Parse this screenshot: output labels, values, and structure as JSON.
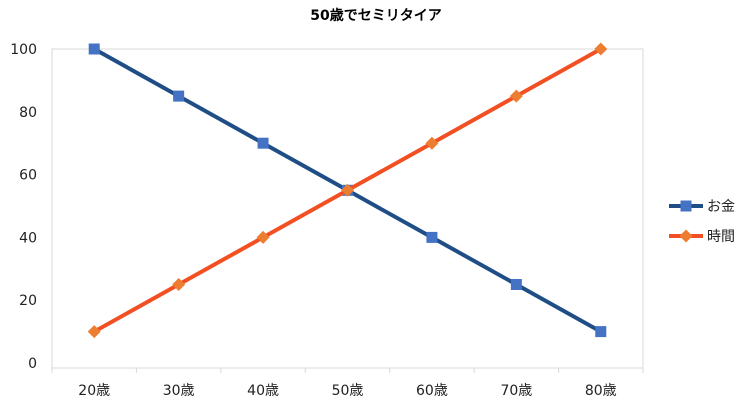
{
  "chart_data": {
    "type": "line",
    "title": "50歳でセミリタイア",
    "categories": [
      "20歳",
      "30歳",
      "40歳",
      "50歳",
      "60歳",
      "70歳",
      "80歳"
    ],
    "ylim": [
      0,
      100
    ],
    "yticks": [
      0,
      20,
      40,
      60,
      80,
      100
    ],
    "grid": false,
    "legend_position": "right",
    "series": [
      {
        "name": "お金",
        "values": [
          100,
          85,
          70,
          55,
          40,
          25,
          10
        ],
        "line_color": "#1f4e87",
        "marker_color": "#4472c4",
        "marker": "square"
      },
      {
        "name": "時間",
        "values": [
          10,
          25,
          40,
          55,
          70,
          85,
          100
        ],
        "line_color": "#f25022",
        "marker_color": "#ed7d31",
        "marker": "diamond"
      }
    ]
  }
}
